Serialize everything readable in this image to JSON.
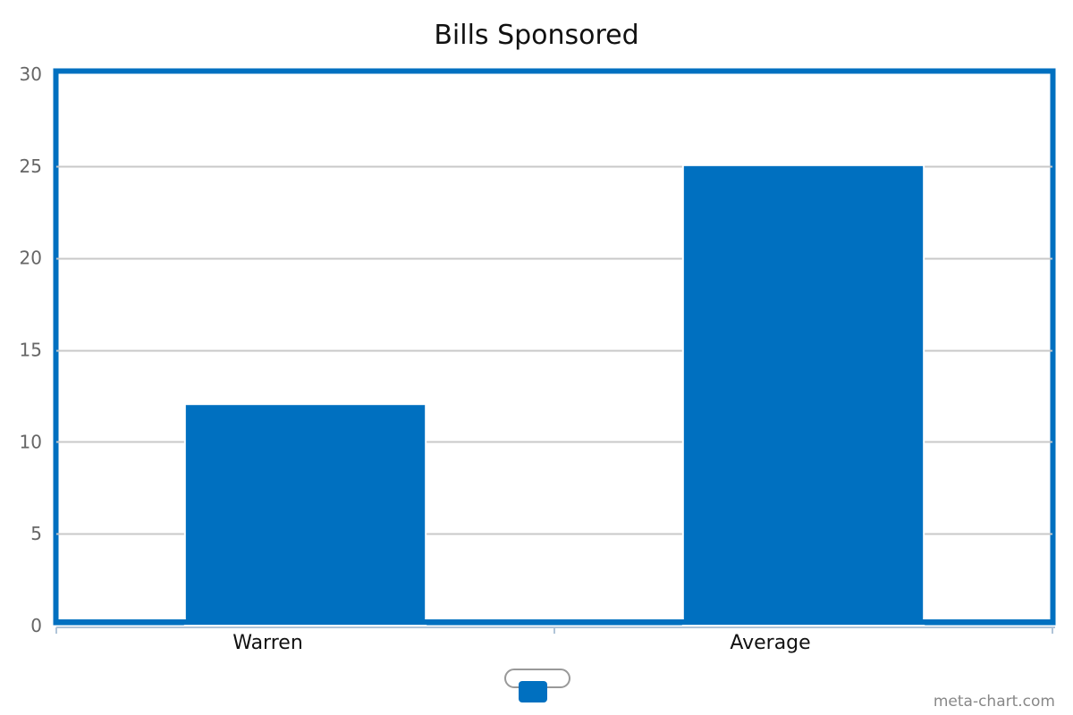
{
  "chart_data": {
    "type": "bar",
    "title": "Bills Sponsored",
    "categories": [
      "Warren",
      "Average"
    ],
    "series": [
      {
        "values": [
          12,
          25
        ],
        "color": "#0070c0"
      }
    ],
    "ylim": [
      0,
      30
    ],
    "yticks": [
      0,
      5,
      10,
      15,
      20,
      25,
      30
    ],
    "grid": true,
    "legend": "bottom-center",
    "xlabel": "",
    "ylabel": ""
  },
  "watermark": "meta-chart.com",
  "colors": {
    "accent": "#0070c0",
    "grid": "#c8c8c8",
    "axis": "#b0c4d8"
  }
}
